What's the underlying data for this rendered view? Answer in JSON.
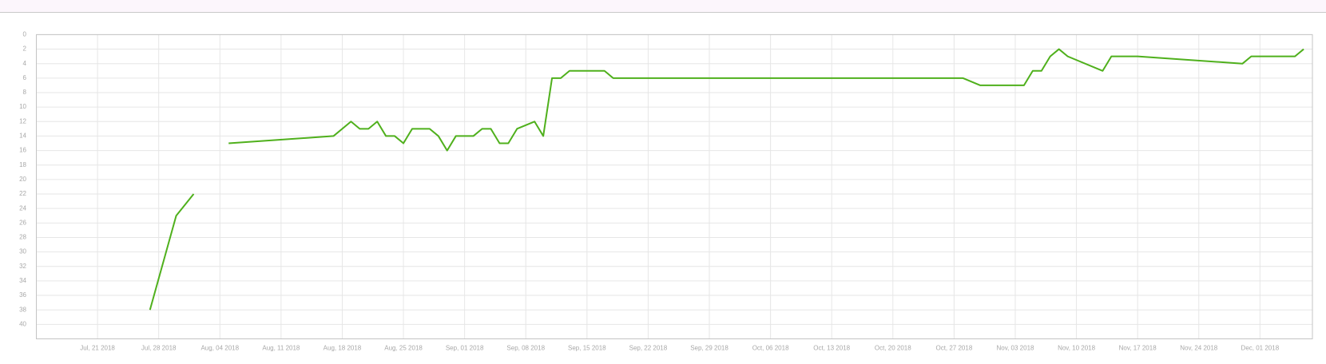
{
  "chart_data": {
    "type": "line",
    "x": [
      "2018-07-27",
      "2018-07-30",
      "2018-08-01",
      "2018-08-03",
      "2018-08-05",
      "2018-08-17",
      "2018-08-19",
      "2018-08-20",
      "2018-08-21",
      "2018-08-22",
      "2018-08-23",
      "2018-08-24",
      "2018-08-25",
      "2018-08-26",
      "2018-08-27",
      "2018-08-28",
      "2018-08-29",
      "2018-08-30",
      "2018-08-31",
      "2018-09-01",
      "2018-09-02",
      "2018-09-03",
      "2018-09-04",
      "2018-09-05",
      "2018-09-06",
      "2018-09-07",
      "2018-09-09",
      "2018-09-10",
      "2018-09-11",
      "2018-09-12",
      "2018-09-13",
      "2018-09-14",
      "2018-09-15",
      "2018-09-16",
      "2018-09-17",
      "2018-09-18",
      "2018-10-28",
      "2018-10-30",
      "2018-11-04",
      "2018-11-05",
      "2018-11-06",
      "2018-11-07",
      "2018-11-08",
      "2018-11-09",
      "2018-11-13",
      "2018-11-14",
      "2018-11-17",
      "2018-11-29",
      "2018-11-30",
      "2018-12-05",
      "2018-12-06"
    ],
    "series": [
      {
        "color": "#4fb01c",
        "values": [
          38,
          25,
          22,
          null,
          15,
          14,
          12,
          13,
          13,
          12,
          14,
          14,
          15,
          13,
          13,
          13,
          14,
          16,
          14,
          14,
          14,
          13,
          13,
          15,
          15,
          13,
          12,
          14,
          6,
          6,
          5,
          5,
          5,
          5,
          5,
          6,
          6,
          7,
          7,
          5,
          5,
          3,
          2,
          3,
          5,
          3,
          3,
          4,
          3,
          3,
          2
        ]
      }
    ],
    "xlim": [
      "2018-07-14",
      "2018-12-07"
    ],
    "xticks": [
      {
        "value": "2018-07-21",
        "label": "Jul, 21 2018"
      },
      {
        "value": "2018-07-28",
        "label": "Jul, 28 2018"
      },
      {
        "value": "2018-08-04",
        "label": "Aug, 04 2018"
      },
      {
        "value": "2018-08-11",
        "label": "Aug, 11 2018"
      },
      {
        "value": "2018-08-18",
        "label": "Aug, 18 2018"
      },
      {
        "value": "2018-08-25",
        "label": "Aug, 25 2018"
      },
      {
        "value": "2018-09-01",
        "label": "Sep, 01 2018"
      },
      {
        "value": "2018-09-08",
        "label": "Sep, 08 2018"
      },
      {
        "value": "2018-09-15",
        "label": "Sep, 15 2018"
      },
      {
        "value": "2018-09-22",
        "label": "Sep, 22 2018"
      },
      {
        "value": "2018-09-29",
        "label": "Sep, 29 2018"
      },
      {
        "value": "2018-10-06",
        "label": "Oct, 06 2018"
      },
      {
        "value": "2018-10-13",
        "label": "Oct, 13 2018"
      },
      {
        "value": "2018-10-20",
        "label": "Oct, 20 2018"
      },
      {
        "value": "2018-10-27",
        "label": "Oct, 27 2018"
      },
      {
        "value": "2018-11-03",
        "label": "Nov, 03 2018"
      },
      {
        "value": "2018-11-10",
        "label": "Nov, 10 2018"
      },
      {
        "value": "2018-11-17",
        "label": "Nov, 17 2018"
      },
      {
        "value": "2018-11-24",
        "label": "Nov, 24 2018"
      },
      {
        "value": "2018-12-01",
        "label": "Dec, 01 2018"
      }
    ],
    "ylim": [
      42,
      0
    ],
    "yticks": [
      0,
      2,
      4,
      6,
      8,
      10,
      12,
      14,
      16,
      18,
      20,
      22,
      24,
      26,
      28,
      30,
      32,
      34,
      36,
      38,
      40
    ],
    "grid": true
  }
}
